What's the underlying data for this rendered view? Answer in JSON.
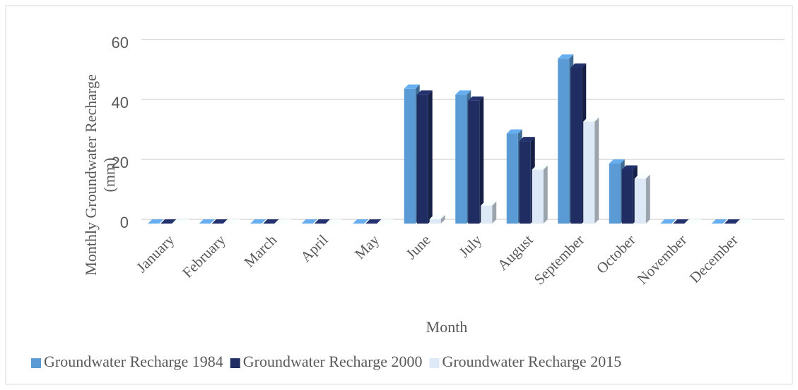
{
  "chart_data": {
    "type": "bar3d",
    "xlabel": "Month",
    "ylabel": "Monthly Groundwater Recharge (mm)",
    "categories": [
      "January",
      "February",
      "March",
      "April",
      "May",
      "June",
      "July",
      "August",
      "September",
      "October",
      "November",
      "December"
    ],
    "series": [
      {
        "name": "Groundwater Recharge 1984",
        "color": "#5b9bd5",
        "values": [
          0,
          0,
          0,
          0,
          0,
          45,
          43,
          30,
          55,
          20,
          0,
          0
        ]
      },
      {
        "name": "Groundwater Recharge 2000",
        "color": "#1f2d63",
        "values": [
          0,
          0,
          0,
          0,
          0,
          43,
          41,
          27.5,
          52,
          18,
          0,
          0
        ]
      },
      {
        "name": "Groundwater Recharge 2015",
        "color": "#dde9f6",
        "values": [
          0,
          0,
          0,
          0,
          0,
          1.5,
          6,
          18,
          34,
          15,
          0,
          0
        ]
      }
    ],
    "ylim": [
      0,
      60
    ],
    "yticks": [
      0,
      20,
      40,
      60
    ],
    "grid": true,
    "legend": "bottom"
  }
}
